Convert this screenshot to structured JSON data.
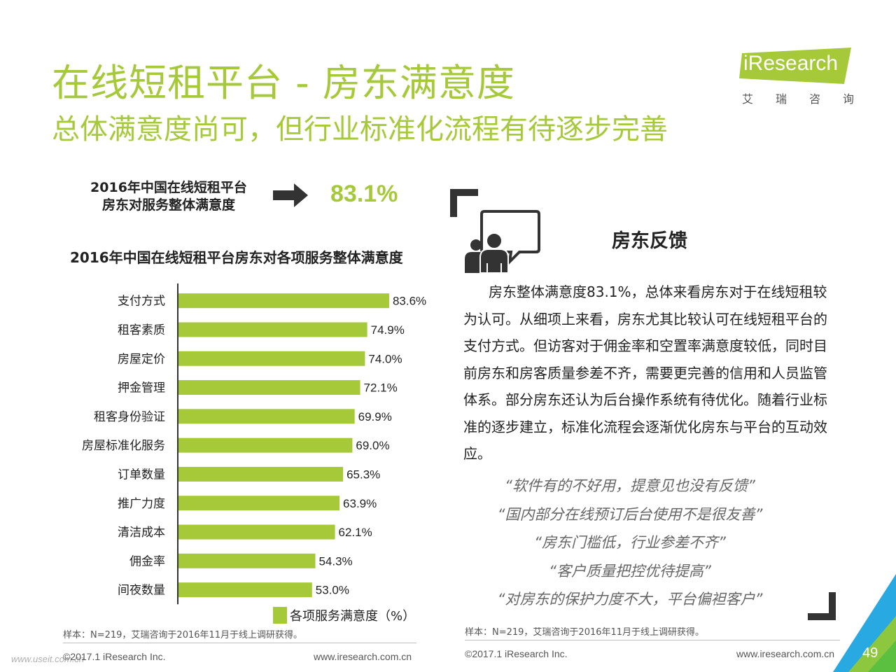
{
  "header": {
    "title": "在线短租平台 - 房东满意度",
    "subtitle": "总体满意度尚可，但行业标准化流程有待逐步完善"
  },
  "logo": {
    "brand": "iResearch",
    "chars": [
      "艾",
      "瑞",
      "咨",
      "询"
    ]
  },
  "overall": {
    "label_line1": "2016年中国在线短租平台",
    "label_line2": "房东对服务整体满意度",
    "value": "83.1%"
  },
  "chart_title": "2016年中国在线短租平台房东对各项服务整体满意度",
  "chart_data": {
    "type": "bar",
    "orientation": "horizontal",
    "categories": [
      "支付方式",
      "租客素质",
      "房屋定价",
      "押金管理",
      "租客身份验证",
      "房屋标准化服务",
      "订单数量",
      "推广力度",
      "清洁成本",
      "佣金率",
      "间夜数量"
    ],
    "series": [
      {
        "name": "各项服务满意度（%）",
        "values": [
          83.6,
          74.9,
          74.0,
          72.1,
          69.9,
          69.0,
          65.3,
          63.9,
          62.1,
          54.3,
          53.0
        ]
      }
    ],
    "value_labels": [
      "83.6%",
      "74.9%",
      "74.0%",
      "72.1%",
      "69.9%",
      "69.0%",
      "65.3%",
      "63.9%",
      "62.1%",
      "54.3%",
      "53.0%"
    ],
    "xlim": [
      0,
      100
    ],
    "grid": false,
    "legend": "bottom"
  },
  "legend_label": "各项服务满意度（%）",
  "footer_left": {
    "note": "样本：N=219，艾瑞咨询于2016年11月于线上调研获得。",
    "copyright": "©2017.1 iResearch Inc.",
    "site": "www.iresearch.com.cn",
    "watermark": "www.useit.com.cn"
  },
  "feedback": {
    "title": "房东反馈",
    "body": "房东整体满意度83.1%，总体来看房东对于在线短租较为认可。从细项上来看，房东尤其比较认可在线短租平台的支付方式。但访客对于佣金率和空置率满意度较低，同时目前房东和房客质量参差不齐，需要更完善的信用和人员监管体系。部分房东还认为后台操作系统有待优化。随着行业标准的逐步建立，标准化流程会逐渐优化房东与平台的互动效应。",
    "quotes": [
      "“软件有的不好用，提意见也没有反馈”",
      "“国内部分在线预订后台使用不是很友善”",
      "“房东门槛低，行业参差不齐”",
      "“客户质量把控优待提高”",
      "“对房东的保护力度不大，平台偏袒客户”"
    ]
  },
  "footer_right": {
    "note": "样本：N=219，艾瑞咨询于2016年11月于线上调研获得。",
    "copyright": "©2017.1 iResearch Inc.",
    "site": "www.iresearch.com.cn"
  },
  "page_number": "49",
  "colors": {
    "accent": "#a6c93a",
    "bar": "#a6c93a",
    "dark": "#333333",
    "corner_blue": "#29a9e1",
    "corner_green": "#8dc63f"
  },
  "icons": [
    "right-arrow-icon",
    "people-chat-icon"
  ]
}
